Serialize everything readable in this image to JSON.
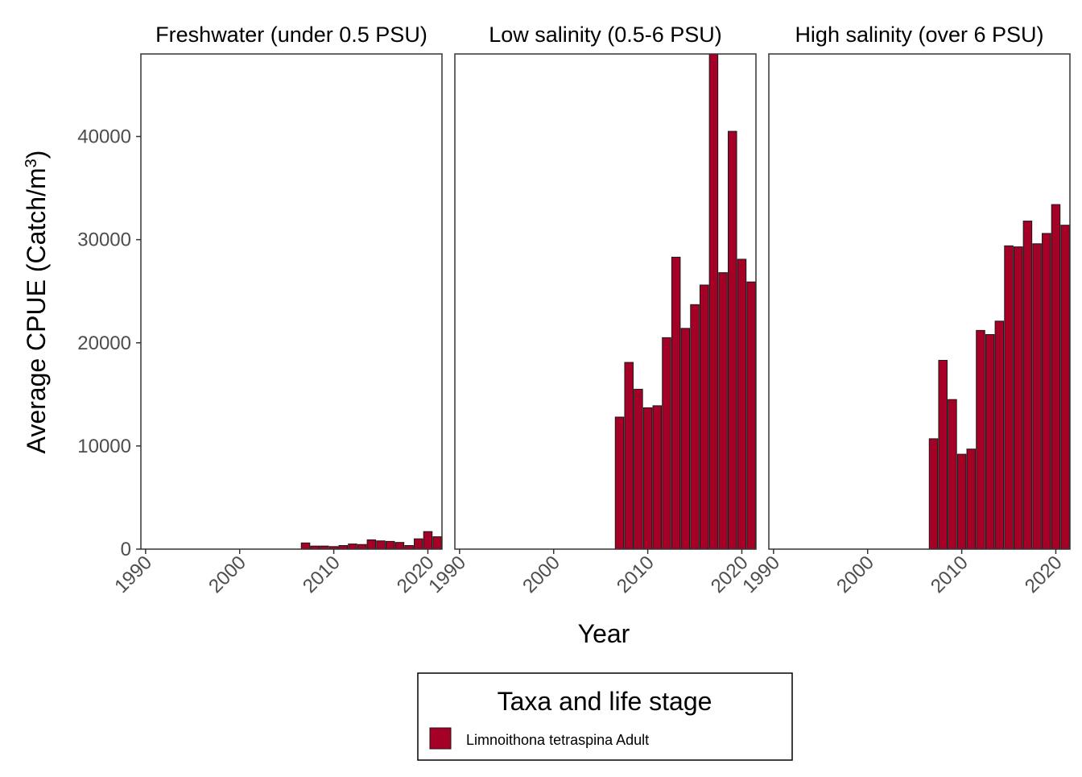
{
  "chart_data": {
    "type": "bar",
    "ylabel_prefix": "Average CPUE (Catch/m",
    "ylabel_sup": "3",
    "ylabel_suffix": ")",
    "xlabel": "Year",
    "xlim": [
      1989.5,
      2021.5
    ],
    "ylim": [
      0,
      48000
    ],
    "yticks": [
      0,
      10000,
      20000,
      30000,
      40000
    ],
    "xticks": [
      1990,
      2000,
      2010,
      2020
    ],
    "bar_color": "#a50026",
    "legend": {
      "title": "Taxa and life stage",
      "items": [
        {
          "label": "Limnoithona tetraspina Adult",
          "color": "#a50026"
        }
      ]
    },
    "panels": [
      {
        "title": "Freshwater (under 0.5 PSU)",
        "x": [
          2007,
          2008,
          2009,
          2010,
          2011,
          2012,
          2013,
          2014,
          2015,
          2016,
          2017,
          2018,
          2019,
          2020,
          2021
        ],
        "values": [
          600,
          300,
          300,
          250,
          350,
          500,
          450,
          900,
          800,
          750,
          650,
          350,
          1000,
          1700,
          1200
        ]
      },
      {
        "title": "Low salinity (0.5-6 PSU)",
        "x": [
          2007,
          2008,
          2009,
          2010,
          2011,
          2012,
          2013,
          2014,
          2015,
          2016,
          2017,
          2018,
          2019,
          2020,
          2021
        ],
        "values": [
          12800,
          18100,
          15500,
          13700,
          13900,
          20500,
          28300,
          21400,
          23700,
          25600,
          48000,
          26800,
          40500,
          28100,
          25900
        ]
      },
      {
        "title": "High salinity (over 6 PSU)",
        "x": [
          2007,
          2008,
          2009,
          2010,
          2011,
          2012,
          2013,
          2014,
          2015,
          2016,
          2017,
          2018,
          2019,
          2020,
          2021
        ],
        "values": [
          10700,
          18300,
          14500,
          9200,
          9700,
          21200,
          20800,
          22100,
          29400,
          29300,
          31800,
          29600,
          30600,
          33400,
          31400
        ]
      }
    ]
  }
}
